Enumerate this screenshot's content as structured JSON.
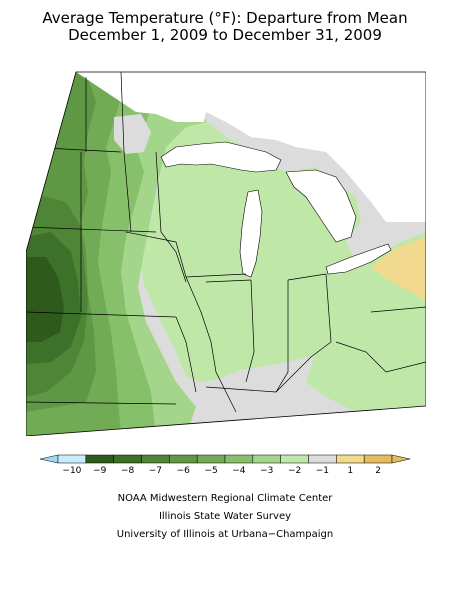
{
  "title": {
    "line1": "Average Temperature (°F): Departure from Mean",
    "line2": "December 1, 2009 to December 31, 2009"
  },
  "legend": {
    "bins": [
      {
        "label": "−10",
        "color": "#c7ecfb"
      },
      {
        "label": "−9",
        "color": "#2e5a1c"
      },
      {
        "label": "−8",
        "color": "#3d7028"
      },
      {
        "label": "−7",
        "color": "#4e8536"
      },
      {
        "label": "−6",
        "color": "#5f9845"
      },
      {
        "label": "−5",
        "color": "#72ab56"
      },
      {
        "label": "−4",
        "color": "#87c06a"
      },
      {
        "label": "−3",
        "color": "#a3d68a"
      },
      {
        "label": "−2",
        "color": "#bfe8a8"
      },
      {
        "label": "−1",
        "color": "#dcdcdc"
      },
      {
        "label": "1",
        "color": "#f1d98e"
      },
      {
        "label": "2",
        "color": "#e6bb5e"
      }
    ],
    "low_arrow_color": "#9fd8f5",
    "high_arrow_color": "#e6bb5e"
  },
  "credits": {
    "line1": "NOAA Midwestern Regional Climate Center",
    "line2": "Illinois State Water Survey",
    "line3": "University of Illinois at Urbana−Champaign"
  }
}
